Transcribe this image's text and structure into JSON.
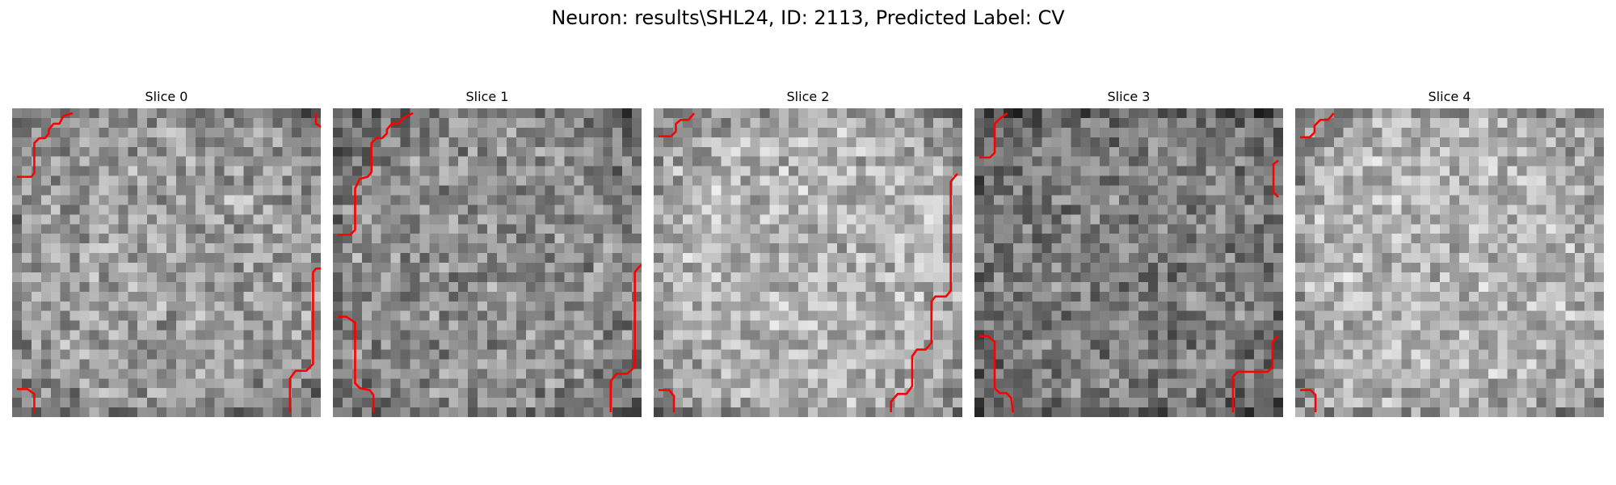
{
  "figure": {
    "suptitle": "Neuron: results\\SHL24, ID: 2113, Predicted Label: CV",
    "contour_color": "#ff0000",
    "colormap": "gray",
    "grid_cells_per_side": 32
  },
  "panels": [
    {
      "title": "Slice 0",
      "seed": 11,
      "brightness": "medium-light",
      "contours": [
        [
          [
            0.5,
            7.1
          ],
          [
            2.0,
            7.1
          ],
          [
            2.3,
            6.7
          ],
          [
            2.3,
            3.6
          ],
          [
            2.8,
            3.1
          ],
          [
            3.4,
            3.1
          ],
          [
            3.8,
            2.6
          ],
          [
            3.8,
            2.2
          ],
          [
            4.3,
            1.6
          ],
          [
            4.9,
            1.6
          ],
          [
            5.3,
            0.8
          ],
          [
            6.3,
            0.5
          ]
        ],
        [
          [
            31.5,
            0.5
          ],
          [
            31.5,
            1.6
          ],
          [
            32.5,
            2.2
          ]
        ],
        [
          [
            0.5,
            29.1
          ],
          [
            1.6,
            29.1
          ],
          [
            2.3,
            29.6
          ],
          [
            2.3,
            31.5
          ]
        ],
        [
          [
            28.8,
            31.5
          ],
          [
            28.8,
            28.0
          ],
          [
            29.4,
            27.2
          ],
          [
            30.5,
            27.2
          ],
          [
            31.2,
            26.5
          ],
          [
            31.2,
            17.0
          ],
          [
            31.5,
            16.6
          ],
          [
            32.0,
            16.6
          ]
        ]
      ]
    },
    {
      "title": "Slice 1",
      "seed": 23,
      "brightness": "medium",
      "contours": [
        [
          [
            0.5,
            13.1
          ],
          [
            1.8,
            13.1
          ],
          [
            2.3,
            12.6
          ],
          [
            2.3,
            8.3
          ],
          [
            2.8,
            7.3
          ],
          [
            3.6,
            7.1
          ],
          [
            4.0,
            6.6
          ],
          [
            4.0,
            3.6
          ],
          [
            4.5,
            3.1
          ],
          [
            5.1,
            3.1
          ],
          [
            5.6,
            2.6
          ],
          [
            5.6,
            2.2
          ],
          [
            6.1,
            1.6
          ],
          [
            6.8,
            1.6
          ],
          [
            7.3,
            1.0
          ],
          [
            8.3,
            0.5
          ]
        ],
        [
          [
            0.5,
            21.6
          ],
          [
            1.4,
            21.6
          ],
          [
            2.3,
            22.2
          ],
          [
            2.3,
            28.5
          ],
          [
            2.8,
            29.0
          ],
          [
            3.8,
            29.2
          ],
          [
            4.2,
            29.7
          ],
          [
            4.2,
            31.5
          ]
        ],
        [
          [
            28.8,
            31.5
          ],
          [
            28.8,
            28.3
          ],
          [
            29.4,
            27.5
          ],
          [
            30.5,
            27.5
          ],
          [
            31.3,
            26.8
          ],
          [
            31.3,
            17.0
          ],
          [
            31.6,
            16.6
          ],
          [
            32.0,
            16.2
          ]
        ]
      ]
    },
    {
      "title": "Slice 2",
      "seed": 37,
      "brightness": "light",
      "contours": [
        [
          [
            0.5,
            2.9
          ],
          [
            1.8,
            2.9
          ],
          [
            2.3,
            2.4
          ],
          [
            2.3,
            1.6
          ],
          [
            2.8,
            1.2
          ],
          [
            3.6,
            1.2
          ],
          [
            4.2,
            0.5
          ]
        ],
        [
          [
            0.5,
            29.2
          ],
          [
            1.6,
            29.2
          ],
          [
            2.1,
            29.8
          ],
          [
            2.1,
            31.5
          ]
        ],
        [
          [
            24.6,
            31.5
          ],
          [
            24.6,
            30.4
          ],
          [
            25.3,
            29.6
          ],
          [
            26.2,
            29.6
          ],
          [
            26.8,
            28.8
          ],
          [
            26.8,
            25.7
          ],
          [
            27.3,
            25.0
          ],
          [
            28.2,
            25.0
          ],
          [
            28.8,
            24.3
          ],
          [
            28.8,
            20.0
          ],
          [
            29.2,
            19.5
          ],
          [
            30.3,
            19.5
          ],
          [
            30.8,
            18.9
          ],
          [
            30.8,
            7.6
          ],
          [
            31.2,
            7.1
          ],
          [
            31.5,
            6.8
          ]
        ]
      ]
    },
    {
      "title": "Slice 3",
      "seed": 53,
      "brightness": "medium-dark",
      "contours": [
        [
          [
            0.5,
            5.1
          ],
          [
            1.6,
            5.1
          ],
          [
            2.1,
            4.6
          ],
          [
            2.1,
            1.6
          ],
          [
            2.6,
            1.1
          ],
          [
            3.4,
            0.5
          ]
        ],
        [
          [
            31.5,
            5.4
          ],
          [
            31.0,
            5.8
          ],
          [
            31.0,
            8.7
          ],
          [
            31.5,
            9.2
          ]
        ],
        [
          [
            0.5,
            23.6
          ],
          [
            1.4,
            23.6
          ],
          [
            2.1,
            24.2
          ],
          [
            2.1,
            29.0
          ],
          [
            2.6,
            29.5
          ],
          [
            3.3,
            29.5
          ],
          [
            3.8,
            30.0
          ],
          [
            4.0,
            31.5
          ]
        ],
        [
          [
            26.8,
            31.5
          ],
          [
            26.8,
            27.8
          ],
          [
            27.3,
            27.3
          ],
          [
            30.4,
            27.3
          ],
          [
            30.9,
            26.8
          ],
          [
            30.9,
            24.3
          ],
          [
            31.2,
            23.8
          ],
          [
            31.5,
            23.6
          ]
        ]
      ]
    },
    {
      "title": "Slice 4",
      "seed": 71,
      "brightness": "light",
      "contours": [
        [
          [
            0.5,
            3.0
          ],
          [
            1.5,
            3.0
          ],
          [
            2.0,
            2.5
          ],
          [
            2.0,
            1.8
          ],
          [
            2.6,
            1.2
          ],
          [
            3.4,
            1.2
          ],
          [
            4.0,
            0.5
          ]
        ],
        [
          [
            0.5,
            29.2
          ],
          [
            1.6,
            29.2
          ],
          [
            2.1,
            29.7
          ],
          [
            2.1,
            31.5
          ]
        ]
      ]
    }
  ]
}
